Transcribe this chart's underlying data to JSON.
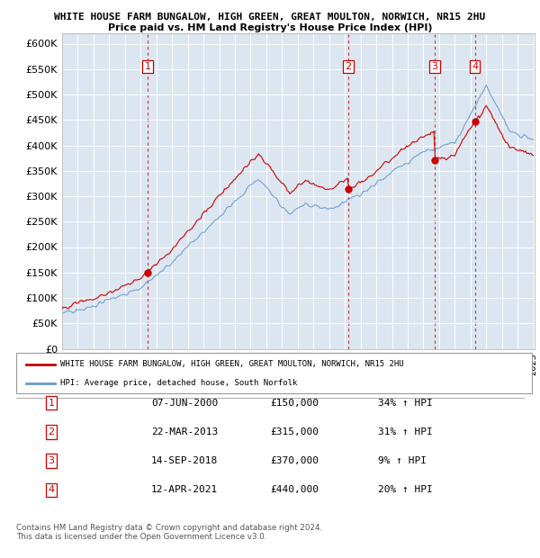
{
  "title": "WHITE HOUSE FARM BUNGALOW, HIGH GREEN, GREAT MOULTON, NORWICH, NR15 2HU",
  "subtitle": "Price paid vs. HM Land Registry's House Price Index (HPI)",
  "ylabel_ticks": [
    "£0",
    "£50K",
    "£100K",
    "£150K",
    "£200K",
    "£250K",
    "£300K",
    "£350K",
    "£400K",
    "£450K",
    "£500K",
    "£550K",
    "£600K"
  ],
  "ytick_values": [
    0,
    50000,
    100000,
    150000,
    200000,
    250000,
    300000,
    350000,
    400000,
    450000,
    500000,
    550000,
    600000
  ],
  "ylim": [
    0,
    620000
  ],
  "background_color": "#dce6f1",
  "red_line_color": "#cc0000",
  "blue_line_color": "#6699cc",
  "t1": 2000.44,
  "p1": 150000,
  "t2": 2013.22,
  "p2": 315000,
  "t3": 2018.71,
  "p3": 370000,
  "t4": 2021.28,
  "p4": 440000,
  "legend_label_red": "WHITE HOUSE FARM BUNGALOW, HIGH GREEN, GREAT MOULTON, NORWICH, NR15 2HU",
  "legend_label_blue": "HPI: Average price, detached house, South Norfolk",
  "footer": "Contains HM Land Registry data © Crown copyright and database right 2024.\nThis data is licensed under the Open Government Licence v3.0.",
  "table_rows": [
    [
      "1",
      "07-JUN-2000",
      "£150,000",
      "34% ↑ HPI"
    ],
    [
      "2",
      "22-MAR-2013",
      "£315,000",
      "31% ↑ HPI"
    ],
    [
      "3",
      "14-SEP-2018",
      "£370,000",
      "9% ↑ HPI"
    ],
    [
      "4",
      "12-APR-2021",
      "£440,000",
      "20% ↑ HPI"
    ]
  ]
}
